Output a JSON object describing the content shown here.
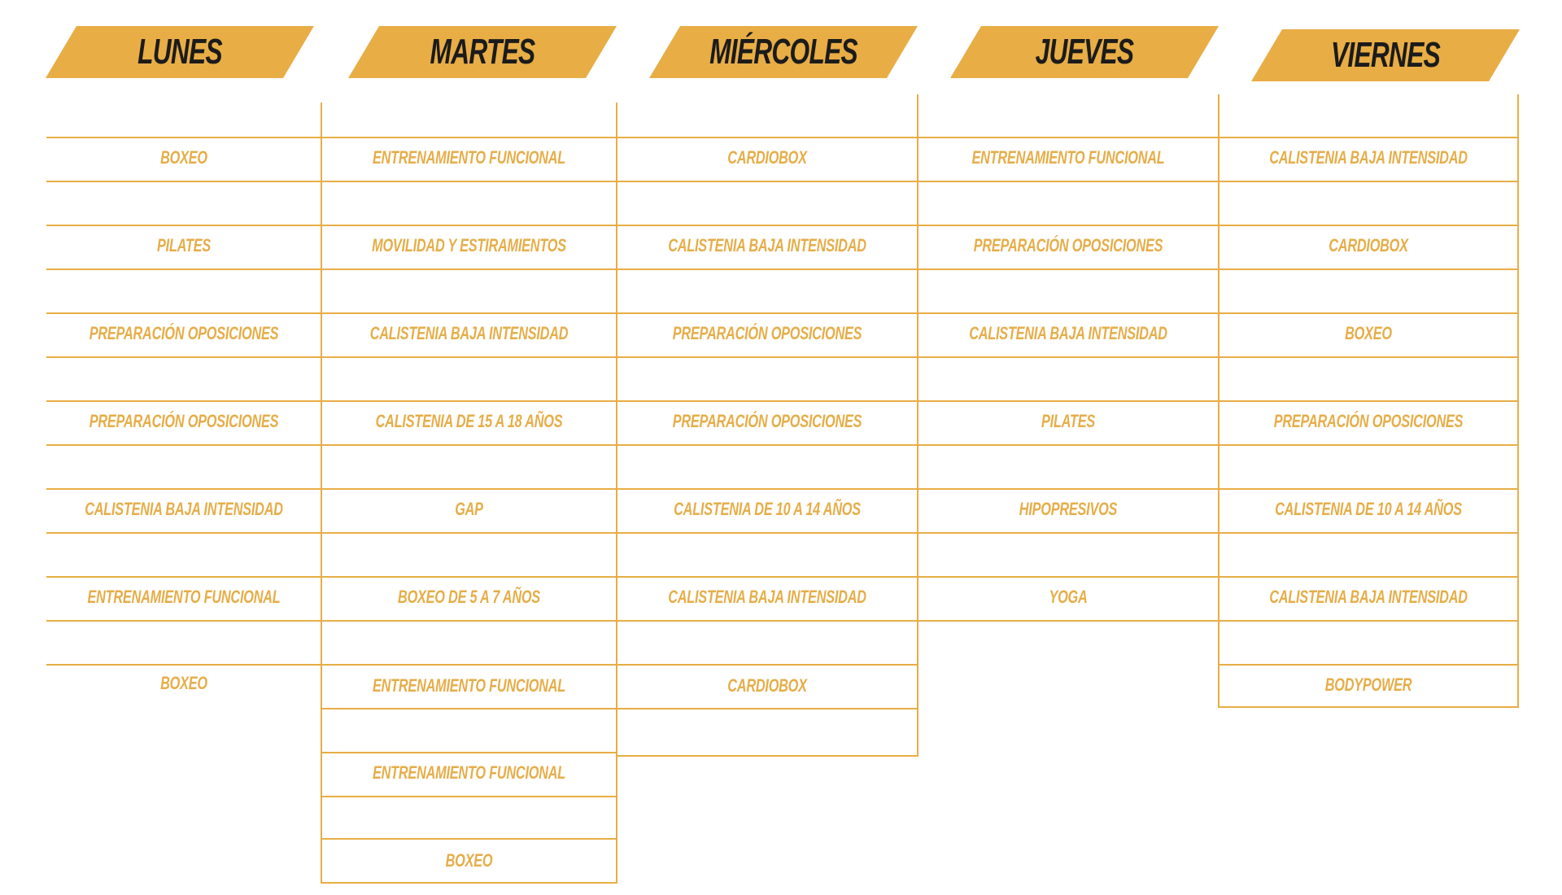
{
  "colors": {
    "banner": "#e8ad45",
    "line": "#e8ad45",
    "class_text": "#e6ad48",
    "day_text": "#1b1b1b"
  },
  "days": [
    {
      "name": "LUNES",
      "classes": [
        "BOXEO",
        "PILATES",
        "PREPARACIÓN OPOSICIONES",
        "PREPARACIÓN OPOSICIONES",
        "CALISTENIA BAJA INTENSIDAD",
        "ENTRENAMIENTO FUNCIONAL",
        "BOXEO"
      ]
    },
    {
      "name": "MARTES",
      "classes": [
        "ENTRENAMIENTO FUNCIONAL",
        "MOVILIDAD Y ESTIRAMIENTOS",
        "CALISTENIA BAJA INTENSIDAD",
        "CALISTENIA DE 15 A 18 AÑOS",
        "GAP",
        "BOXEO DE 5 A 7 AÑOS",
        "ENTRENAMIENTO FUNCIONAL",
        "ENTRENAMIENTO FUNCIONAL",
        "BOXEO"
      ]
    },
    {
      "name": "MIÉRCOLES",
      "classes": [
        "CARDIOBOX",
        "CALISTENIA BAJA INTENSIDAD",
        "PREPARACIÓN OPOSICIONES",
        "PREPARACIÓN OPOSICIONES",
        "CALISTENIA DE 10 A 14 AÑOS",
        "CALISTENIA BAJA INTENSIDAD",
        "CARDIOBOX"
      ]
    },
    {
      "name": "JUEVES",
      "classes": [
        "ENTRENAMIENTO FUNCIONAL",
        "PREPARACIÓN OPOSICIONES",
        "CALISTENIA BAJA INTENSIDAD",
        "PILATES",
        "HIPOPRESIVOS",
        "YOGA"
      ]
    },
    {
      "name": "VIERNES",
      "classes": [
        "CALISTENIA BAJA INTENSIDAD",
        "CARDIOBOX",
        "BOXEO",
        "PREPARACIÓN OPOSICIONES",
        "CALISTENIA DE 10 A 14 AÑOS",
        "CALISTENIA BAJA INTENSIDAD",
        "BODYPOWER"
      ]
    }
  ]
}
